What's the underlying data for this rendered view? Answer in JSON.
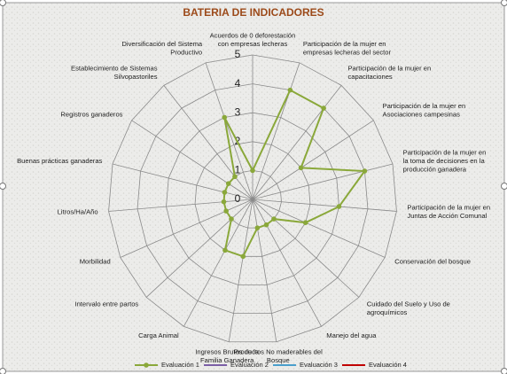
{
  "chart_data": {
    "type": "radar",
    "title": "BATERIA DE INDICADORES",
    "categories": [
      "Acuerdos de 0 deforestación con empresas lecheras",
      "Participación de la mujer en empresas lecheras del sector",
      "Participación de la mujer en capacitaciones",
      "Participación de la mujer en Asociaciones campesinas",
      "Participación de la mujer en la toma de decisiones en la producción ganadera",
      "Participación de la mujer en Juntas de Acción Comunal",
      "Conservación del bosque",
      "Cuidado del Suelo y Uso de agroquímicos",
      "Manejo del agua",
      "Productos No maderables del Bosque",
      "Ingresos Brutos de la Familia Ganadera",
      "Carga Animal",
      "Intervalo entre partos",
      "Morbilidad",
      "Litros/Ha/Año",
      "Buenas prácticas ganaderas",
      "Registros ganaderos",
      "Establecimiento de Sistemas Silvopastoriles",
      "Diversificación del Sistema Productivo"
    ],
    "series": [
      {
        "name": "Evaluación 1",
        "color": "#8aa83a",
        "values": [
          1,
          4,
          4,
          2,
          4,
          3,
          2,
          1,
          1,
          1,
          2,
          2,
          1,
          1,
          1,
          1,
          1,
          1,
          3
        ]
      },
      {
        "name": "Evaluación 2",
        "color": "#7b5fa6",
        "values": [
          null,
          null,
          null,
          null,
          null,
          null,
          null,
          null,
          null,
          null,
          null,
          null,
          null,
          null,
          null,
          null,
          null,
          null,
          null
        ]
      },
      {
        "name": "Evaluación 3",
        "color": "#4a9fcc",
        "values": [
          null,
          null,
          null,
          null,
          null,
          null,
          null,
          null,
          null,
          null,
          null,
          null,
          null,
          null,
          null,
          null,
          null,
          null,
          null
        ]
      },
      {
        "name": "Evaluación 4",
        "color": "#c00000",
        "values": [
          null,
          null,
          null,
          null,
          null,
          null,
          null,
          null,
          null,
          null,
          null,
          null,
          null,
          null,
          null,
          null,
          null,
          null,
          null
        ]
      }
    ],
    "ylim": [
      0,
      5
    ],
    "yticks": [
      0,
      1,
      2,
      3,
      4,
      5
    ],
    "grid": true,
    "legend": "bottom"
  }
}
